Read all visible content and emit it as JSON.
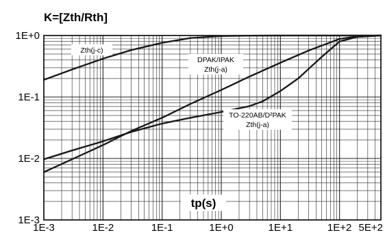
{
  "chart_data": {
    "type": "line",
    "title": "K=[Zth/Rth]",
    "xlabel": "tp(s)",
    "ylabel": "",
    "x_scale": "log",
    "y_scale": "log",
    "xlim": [
      0.001,
      500
    ],
    "ylim": [
      0.001,
      1
    ],
    "x_ticks": [
      {
        "value": 0.001,
        "label": "1E-3"
      },
      {
        "value": 0.01,
        "label": "1E-2"
      },
      {
        "value": 0.1,
        "label": "1E-1"
      },
      {
        "value": 1,
        "label": "1E+0"
      },
      {
        "value": 10,
        "label": "1E+1"
      },
      {
        "value": 100,
        "label": "1E+2"
      },
      {
        "value": 500,
        "label": "5E+2"
      }
    ],
    "y_ticks": [
      {
        "value": 1,
        "label": "1E+0"
      },
      {
        "value": 0.1,
        "label": "1E-1"
      },
      {
        "value": 0.01,
        "label": "1E-2"
      },
      {
        "value": 0.001,
        "label": "1E-3"
      }
    ],
    "grid": true,
    "series": [
      {
        "name": "Zth(j-c)",
        "x": [
          0.001,
          0.003,
          0.01,
          0.03,
          0.1,
          0.3,
          1,
          3,
          10,
          100,
          500
        ],
        "y": [
          0.19,
          0.28,
          0.42,
          0.58,
          0.76,
          0.91,
          0.98,
          0.995,
          1,
          1,
          1
        ]
      },
      {
        "name": "DPAK/IPAK Zth(j-a)",
        "x": [
          0.001,
          0.003,
          0.01,
          0.03,
          0.1,
          0.3,
          1,
          3,
          10,
          30,
          100,
          200,
          500
        ],
        "y": [
          0.006,
          0.0097,
          0.0165,
          0.028,
          0.046,
          0.077,
          0.13,
          0.215,
          0.36,
          0.57,
          0.88,
          0.97,
          1
        ]
      },
      {
        "name": "TO-220AB/D²PAK Zth(j-a)",
        "x": [
          0.001,
          0.003,
          0.01,
          0.03,
          0.1,
          0.3,
          1,
          3,
          5,
          10,
          20,
          50,
          100,
          200,
          500
        ],
        "y": [
          0.0097,
          0.0135,
          0.019,
          0.027,
          0.037,
          0.046,
          0.057,
          0.071,
          0.085,
          0.125,
          0.2,
          0.45,
          0.8,
          0.95,
          1
        ]
      }
    ],
    "annotations": [
      {
        "series": "Zth(j-c)",
        "lines": [
          "Zth(j-c)"
        ]
      },
      {
        "series": "DPAK/IPAK Zth(j-a)",
        "lines": [
          "DPAK/IPAK",
          "Zth(j-a)"
        ]
      },
      {
        "series": "TO-220AB/D²PAK Zth(j-a)",
        "lines": [
          "TO-220AB/D²PAK",
          "Zth(j-a)"
        ]
      }
    ],
    "colors": {
      "line": "#1a1a1a",
      "grid": "#222222",
      "text": "#000000"
    }
  }
}
